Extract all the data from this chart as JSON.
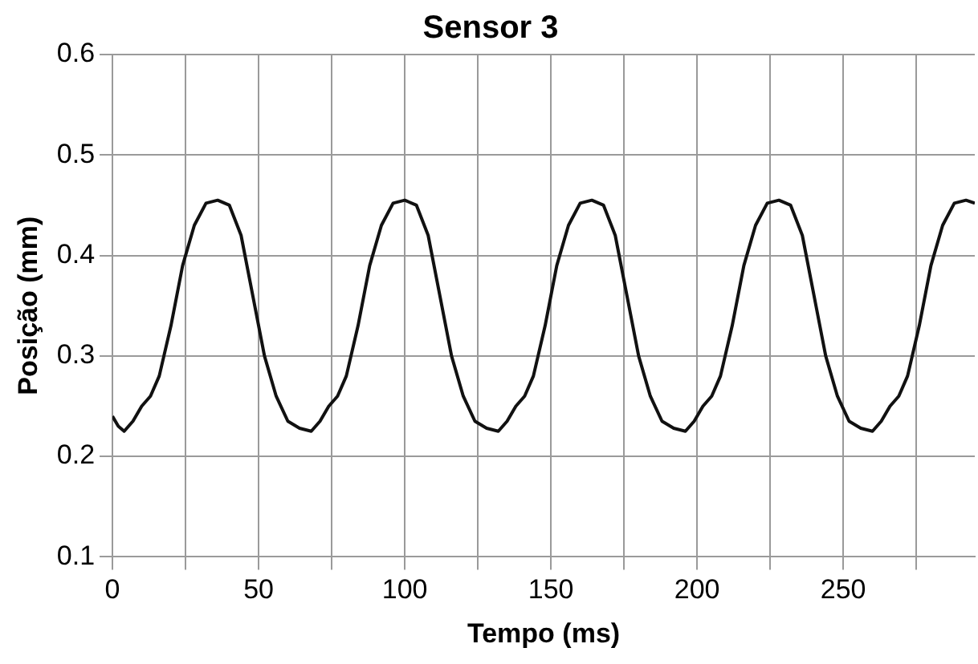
{
  "chart_data": {
    "type": "line",
    "title": "Sensor 3",
    "xlabel": "Tempo (ms)",
    "ylabel": "Posição (mm)",
    "xlim": [
      0,
      295
    ],
    "xticks": [
      0,
      {
        "value": 25,
        "label": null
      },
      50,
      {
        "value": 75,
        "label": null
      },
      100,
      {
        "value": 125,
        "label": null
      },
      150,
      {
        "value": 175,
        "label": null
      },
      200,
      {
        "value": 225,
        "label": null
      },
      250,
      {
        "value": 275,
        "label": null
      }
    ],
    "ylim": [
      0.1,
      0.6
    ],
    "yticks": [
      0.1,
      0.2,
      0.3,
      0.4,
      0.5,
      0.6
    ],
    "grid": true,
    "legend": false,
    "marker": "none",
    "line_style": "solid",
    "series": [
      {
        "color": "#111111",
        "x": [
          0,
          2,
          4,
          7,
          10,
          13,
          16,
          20,
          24,
          28,
          32,
          36,
          40,
          44,
          48,
          52,
          56,
          60,
          64,
          68,
          71,
          74,
          77,
          80,
          84,
          88,
          92,
          96,
          100,
          104,
          108,
          112,
          116,
          120,
          124,
          128,
          132,
          135,
          138,
          141,
          144,
          148,
          152,
          156,
          160,
          164,
          168,
          172,
          176,
          180,
          184,
          188,
          192,
          196,
          199,
          202,
          205,
          208,
          212,
          216,
          220,
          224,
          228,
          232,
          236,
          240,
          244,
          248,
          252,
          256,
          260,
          263,
          266,
          269,
          272,
          276,
          280,
          284,
          288,
          292,
          295
        ],
        "values": [
          0.24,
          0.23,
          0.225,
          0.235,
          0.25,
          0.26,
          0.28,
          0.33,
          0.39,
          0.43,
          0.452,
          0.455,
          0.45,
          0.42,
          0.36,
          0.3,
          0.26,
          0.235,
          0.228,
          0.225,
          0.235,
          0.25,
          0.26,
          0.28,
          0.33,
          0.39,
          0.43,
          0.452,
          0.455,
          0.45,
          0.42,
          0.36,
          0.3,
          0.26,
          0.235,
          0.228,
          0.225,
          0.235,
          0.25,
          0.26,
          0.28,
          0.33,
          0.39,
          0.43,
          0.452,
          0.455,
          0.45,
          0.42,
          0.36,
          0.3,
          0.26,
          0.235,
          0.228,
          0.225,
          0.235,
          0.25,
          0.26,
          0.28,
          0.33,
          0.39,
          0.43,
          0.452,
          0.455,
          0.45,
          0.42,
          0.36,
          0.3,
          0.26,
          0.235,
          0.228,
          0.225,
          0.235,
          0.25,
          0.26,
          0.28,
          0.33,
          0.39,
          0.43,
          0.452,
          0.455,
          0.452
        ]
      }
    ]
  }
}
